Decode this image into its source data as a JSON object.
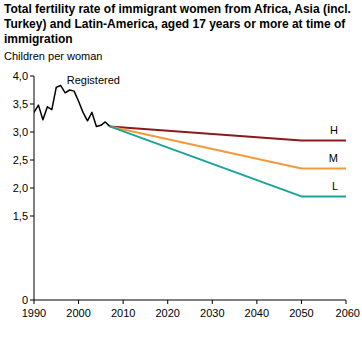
{
  "chart_data": {
    "type": "line",
    "title": "Total fertility rate of immigrant women from Africa, Asia (incl. Turkey) and Latin-America, aged 17 years or more at time of immigration",
    "y_label": "Children per woman",
    "x": [
      1990,
      1991,
      1992,
      1993,
      1994,
      1995,
      1996,
      1997,
      1998,
      1999,
      2000,
      2001,
      2002,
      2003,
      2004,
      2005,
      2006,
      2007,
      2050,
      2060
    ],
    "series": [
      {
        "name": "Registered",
        "color": "#000000",
        "values": [
          3.35,
          3.48,
          3.22,
          3.45,
          3.4,
          3.8,
          3.83,
          3.7,
          3.75,
          3.73,
          3.55,
          3.35,
          3.2,
          3.35,
          3.1,
          3.12,
          3.18,
          3.1,
          null,
          null
        ]
      },
      {
        "name": "H",
        "color": "#8b1a1a",
        "values": [
          null,
          null,
          null,
          null,
          null,
          null,
          null,
          null,
          null,
          null,
          null,
          null,
          null,
          null,
          null,
          null,
          null,
          3.1,
          2.85,
          2.85
        ]
      },
      {
        "name": "M",
        "color": "#f39a3c",
        "values": [
          null,
          null,
          null,
          null,
          null,
          null,
          null,
          null,
          null,
          null,
          null,
          null,
          null,
          null,
          null,
          null,
          null,
          3.1,
          2.35,
          2.35
        ]
      },
      {
        "name": "L",
        "color": "#1aa39a",
        "values": [
          null,
          null,
          null,
          null,
          null,
          null,
          null,
          null,
          null,
          null,
          null,
          null,
          null,
          null,
          null,
          null,
          null,
          3.1,
          1.85,
          1.85
        ]
      }
    ],
    "xlim": [
      1990,
      2060
    ],
    "xticks": [
      1990,
      2000,
      2010,
      2020,
      2030,
      2040,
      2050,
      2060
    ],
    "ylim": [
      0,
      4.0
    ],
    "yticks": [
      {
        "value": 0,
        "label": "0"
      },
      {
        "value": 1.5,
        "label": "1,5"
      },
      {
        "value": 2.0,
        "label": "2,0"
      },
      {
        "value": 2.5,
        "label": "2,5"
      },
      {
        "value": 3.0,
        "label": "3,0"
      },
      {
        "value": 3.5,
        "label": "3,5"
      },
      {
        "value": 4.0,
        "label": "4,0"
      }
    ],
    "grid": false
  }
}
